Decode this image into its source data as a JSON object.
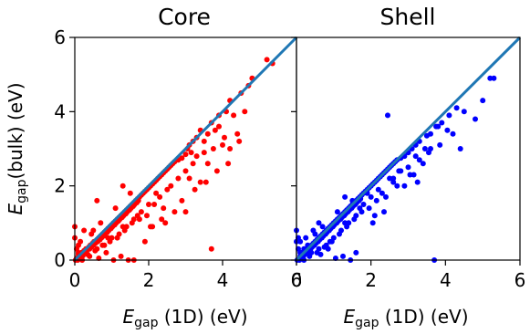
{
  "chart_data": [
    {
      "type": "scatter",
      "title": "Core",
      "ylabel_main": "E",
      "ylabel_sub": "gap",
      "ylabel_rest": "(bulk) (eV)",
      "xlabel_main": "E",
      "xlabel_sub": "gap",
      "xlabel_rest": " (1D) (eV)",
      "xlim": [
        0,
        6
      ],
      "ylim": [
        0,
        6
      ],
      "xticks": [
        "0",
        "2",
        "4",
        "6"
      ],
      "yticks": [
        "0",
        "2",
        "4",
        "6"
      ],
      "point_color": "#ff0000",
      "line_color": "#1f77b4",
      "reference_line": [
        [
          0,
          0
        ],
        [
          6,
          6
        ]
      ],
      "x": [
        0.02,
        0.05,
        0.08,
        0.1,
        0.12,
        0.15,
        0.18,
        0.2,
        0.22,
        0.25,
        0.28,
        0.3,
        0.32,
        0.35,
        0.38,
        0.4,
        0.42,
        0.45,
        0.48,
        0.5,
        0.52,
        0.55,
        0.58,
        0.6,
        0.62,
        0.65,
        0.68,
        0.7,
        0.72,
        0.75,
        0.78,
        0.8,
        0.82,
        0.85,
        0.88,
        0.9,
        0.92,
        0.95,
        0.98,
        1.0,
        1.02,
        1.05,
        1.08,
        1.1,
        1.12,
        1.15,
        1.18,
        1.2,
        1.22,
        1.25,
        1.28,
        1.3,
        1.32,
        1.35,
        1.38,
        1.4,
        1.42,
        1.45,
        1.48,
        1.5,
        1.52,
        1.55,
        1.58,
        1.6,
        1.62,
        1.65,
        1.68,
        1.7,
        1.72,
        1.75,
        1.8,
        1.85,
        1.9,
        1.95,
        2.0,
        2.05,
        2.1,
        2.15,
        2.2,
        2.25,
        2.3,
        2.35,
        2.4,
        2.45,
        2.5,
        2.55,
        2.6,
        2.65,
        2.7,
        2.8,
        2.9,
        3.0,
        3.05,
        3.1,
        3.15,
        3.2,
        3.3,
        3.4,
        3.5,
        3.6,
        3.7,
        3.8,
        3.9,
        4.0,
        4.1,
        4.2,
        4.3,
        4.5,
        4.7,
        5.2,
        5.35,
        0.05,
        0.1,
        0.3,
        0.5,
        0.7,
        0.9,
        1.1,
        1.3,
        1.5,
        1.7,
        2.0,
        2.3,
        2.6,
        3.0,
        3.3,
        3.6,
        3.9,
        4.2,
        4.6,
        0.15,
        0.4,
        0.6,
        0.8,
        1.0,
        1.2,
        1.4,
        1.6,
        1.8,
        2.2,
        2.5,
        2.8,
        3.2,
        3.5,
        0.2,
        0.35,
        0.55,
        0.75,
        0.95,
        1.15,
        1.35,
        1.55,
        1.75,
        1.95,
        2.15,
        2.4,
        2.7,
        3.1,
        3.4,
        3.75,
        4.05,
        4.4,
        1.05,
        1.25,
        1.45,
        0.65,
        0.85,
        2.1,
        2.9,
        3.25,
        3.55,
        3.85,
        4.15,
        4.45,
        4.8,
        1.6,
        2.05,
        2.35,
        0.45,
        0.25,
        0.0,
        0.0,
        0.1,
        0.6,
        1.3,
        1.9,
        2.45,
        3.0,
        3.7
      ],
      "y": [
        0.0,
        0.05,
        0.0,
        0.15,
        0.1,
        0.08,
        0.2,
        0.15,
        0.12,
        0.25,
        0.2,
        0.3,
        0.25,
        0.3,
        0.35,
        0.3,
        0.4,
        0.35,
        0.45,
        0.4,
        0.5,
        0.45,
        0.5,
        0.55,
        0.5,
        0.6,
        0.55,
        0.65,
        0.6,
        0.7,
        0.65,
        0.75,
        0.7,
        0.8,
        0.75,
        0.85,
        0.8,
        0.9,
        0.85,
        0.95,
        0.9,
        1.0,
        0.95,
        1.05,
        1.0,
        1.1,
        1.05,
        1.15,
        1.1,
        1.2,
        1.15,
        1.25,
        1.2,
        1.3,
        1.25,
        1.35,
        1.3,
        1.4,
        1.35,
        1.45,
        1.4,
        1.5,
        1.45,
        1.55,
        1.5,
        1.6,
        1.55,
        1.65,
        1.6,
        1.7,
        1.75,
        1.8,
        1.85,
        1.9,
        1.95,
        2.0,
        2.05,
        2.1,
        2.15,
        2.2,
        2.25,
        2.3,
        2.35,
        2.4,
        2.45,
        2.5,
        2.55,
        2.6,
        2.65,
        2.7,
        2.75,
        2.85,
        3.0,
        3.1,
        2.9,
        3.2,
        3.3,
        3.5,
        3.2,
        3.4,
        3.7,
        3.5,
        3.9,
        3.1,
        4.0,
        4.3,
        3.9,
        4.5,
        4.7,
        5.4,
        5.3,
        0.3,
        0.4,
        0.2,
        0.8,
        1.0,
        0.6,
        1.4,
        0.9,
        1.8,
        1.2,
        1.5,
        1.7,
        2.0,
        2.4,
        2.8,
        2.6,
        3.6,
        3.0,
        4.0,
        0.5,
        0.1,
        0.3,
        0.4,
        0.6,
        0.7,
        0.9,
        1.1,
        1.3,
        1.8,
        1.9,
        2.2,
        2.6,
        2.9,
        0.0,
        0.15,
        0.25,
        0.4,
        0.5,
        0.6,
        0.8,
        1.0,
        1.1,
        1.2,
        1.5,
        1.4,
        1.3,
        2.2,
        2.1,
        3.0,
        3.3,
        3.4,
        0.0,
        0.1,
        0.0,
        0.05,
        0.2,
        0.9,
        1.6,
        1.9,
        2.1,
        2.4,
        2.6,
        3.2,
        4.9,
        0.0,
        0.9,
        1.1,
        0.7,
        0.8,
        0.9,
        0.6,
        0.2,
        1.6,
        2.0,
        0.5,
        1.0,
        1.3,
        0.3
      ]
    },
    {
      "type": "scatter",
      "title": "Shell",
      "xlabel_main": "E",
      "xlabel_sub": "gap",
      "xlabel_rest": " (1D) (eV)",
      "xlim": [
        0,
        6
      ],
      "ylim": [
        0,
        6
      ],
      "xticks": [
        "0",
        "2",
        "4",
        "6"
      ],
      "point_color": "#0000ff",
      "line_color": "#1f77b4",
      "reference_line": [
        [
          0,
          0
        ],
        [
          6,
          6
        ]
      ],
      "x": [
        0.02,
        0.05,
        0.08,
        0.1,
        0.12,
        0.15,
        0.18,
        0.2,
        0.22,
        0.25,
        0.28,
        0.3,
        0.32,
        0.35,
        0.38,
        0.4,
        0.42,
        0.45,
        0.48,
        0.5,
        0.52,
        0.55,
        0.58,
        0.6,
        0.62,
        0.65,
        0.68,
        0.7,
        0.72,
        0.75,
        0.78,
        0.8,
        0.82,
        0.85,
        0.88,
        0.9,
        0.92,
        0.95,
        0.98,
        1.0,
        1.02,
        1.05,
        1.08,
        1.1,
        1.12,
        1.15,
        1.18,
        1.2,
        1.22,
        1.25,
        1.28,
        1.3,
        1.32,
        1.35,
        1.38,
        1.4,
        1.42,
        1.45,
        1.48,
        1.5,
        1.52,
        1.55,
        1.58,
        1.6,
        1.62,
        1.65,
        1.68,
        1.7,
        1.72,
        1.75,
        1.8,
        1.85,
        1.9,
        1.95,
        2.0,
        2.05,
        2.1,
        2.15,
        2.2,
        2.25,
        2.3,
        2.35,
        2.4,
        2.45,
        2.5,
        2.55,
        2.6,
        2.65,
        2.7,
        2.8,
        2.9,
        3.0,
        3.1,
        3.2,
        3.3,
        3.5,
        3.6,
        3.8,
        3.9,
        4.1,
        4.3,
        4.5,
        4.8,
        5.0,
        5.2,
        5.3,
        0.05,
        0.1,
        0.3,
        0.5,
        0.7,
        0.9,
        1.1,
        1.3,
        1.5,
        1.7,
        2.0,
        2.3,
        2.6,
        3.0,
        3.3,
        3.6,
        0.15,
        0.4,
        0.6,
        0.8,
        1.0,
        1.2,
        1.4,
        1.6,
        1.8,
        2.2,
        2.5,
        2.8,
        3.2,
        0.2,
        0.35,
        0.55,
        0.75,
        0.95,
        1.15,
        1.35,
        1.55,
        1.75,
        1.95,
        2.15,
        2.4,
        2.7,
        3.05,
        3.4,
        3.75,
        4.05,
        1.05,
        1.25,
        1.45,
        0.65,
        0.85,
        2.1,
        2.9,
        3.25,
        3.55,
        3.85,
        4.2,
        1.6,
        2.05,
        2.35,
        0.45,
        0.25,
        0.0,
        0.0,
        0.1,
        0.6,
        1.3,
        1.9,
        2.45,
        3.0,
        3.7,
        2.6,
        3.45,
        4.4,
        2.75,
        3.15
      ],
      "y": [
        0.0,
        0.3,
        0.0,
        0.5,
        0.1,
        0.2,
        0.1,
        0.3,
        0.15,
        0.2,
        0.25,
        0.3,
        0.2,
        0.35,
        0.3,
        0.4,
        0.35,
        0.45,
        0.4,
        0.5,
        0.45,
        0.55,
        0.5,
        0.6,
        0.55,
        0.65,
        0.6,
        0.7,
        0.65,
        0.75,
        0.7,
        0.8,
        0.75,
        0.85,
        0.8,
        0.9,
        0.85,
        0.95,
        0.9,
        1.0,
        0.95,
        1.05,
        1.0,
        1.1,
        1.05,
        1.15,
        1.1,
        1.2,
        1.15,
        1.25,
        1.2,
        1.3,
        1.25,
        1.35,
        1.3,
        1.4,
        1.35,
        1.45,
        1.4,
        1.5,
        1.45,
        1.55,
        1.5,
        1.6,
        1.55,
        1.65,
        1.6,
        1.7,
        1.65,
        1.75,
        1.8,
        1.85,
        1.9,
        1.95,
        2.0,
        2.05,
        2.1,
        2.15,
        2.2,
        2.25,
        2.3,
        2.35,
        2.4,
        2.45,
        2.5,
        2.55,
        2.6,
        2.65,
        2.7,
        2.75,
        2.8,
        2.9,
        3.0,
        3.1,
        3.2,
        3.35,
        3.4,
        3.6,
        3.7,
        3.9,
        4.1,
        4.0,
        3.8,
        4.3,
        4.9,
        4.9,
        0.6,
        0.2,
        0.4,
        0.7,
        0.9,
        0.5,
        1.3,
        1.0,
        1.6,
        1.4,
        1.7,
        1.8,
        2.1,
        2.5,
        2.7,
        3.0,
        0.1,
        0.2,
        0.3,
        0.4,
        0.6,
        0.8,
        1.0,
        1.2,
        1.5,
        1.9,
        2.2,
        2.4,
        2.8,
        0.0,
        0.1,
        0.2,
        0.35,
        0.5,
        0.7,
        0.9,
        1.1,
        1.3,
        1.4,
        1.6,
        1.7,
        2.0,
        2.3,
        2.6,
        3.6,
        3.5,
        0.05,
        0.1,
        0.0,
        0.15,
        0.3,
        1.2,
        2.0,
        2.1,
        2.9,
        3.1,
        3.4,
        0.2,
        1.0,
        1.3,
        0.8,
        0.6,
        0.8,
        0.5,
        0.1,
        1.0,
        1.7,
        1.8,
        3.9,
        2.9,
        0.0,
        2.2,
        3.0,
        3.0,
        2.4,
        2.3
      ]
    }
  ]
}
